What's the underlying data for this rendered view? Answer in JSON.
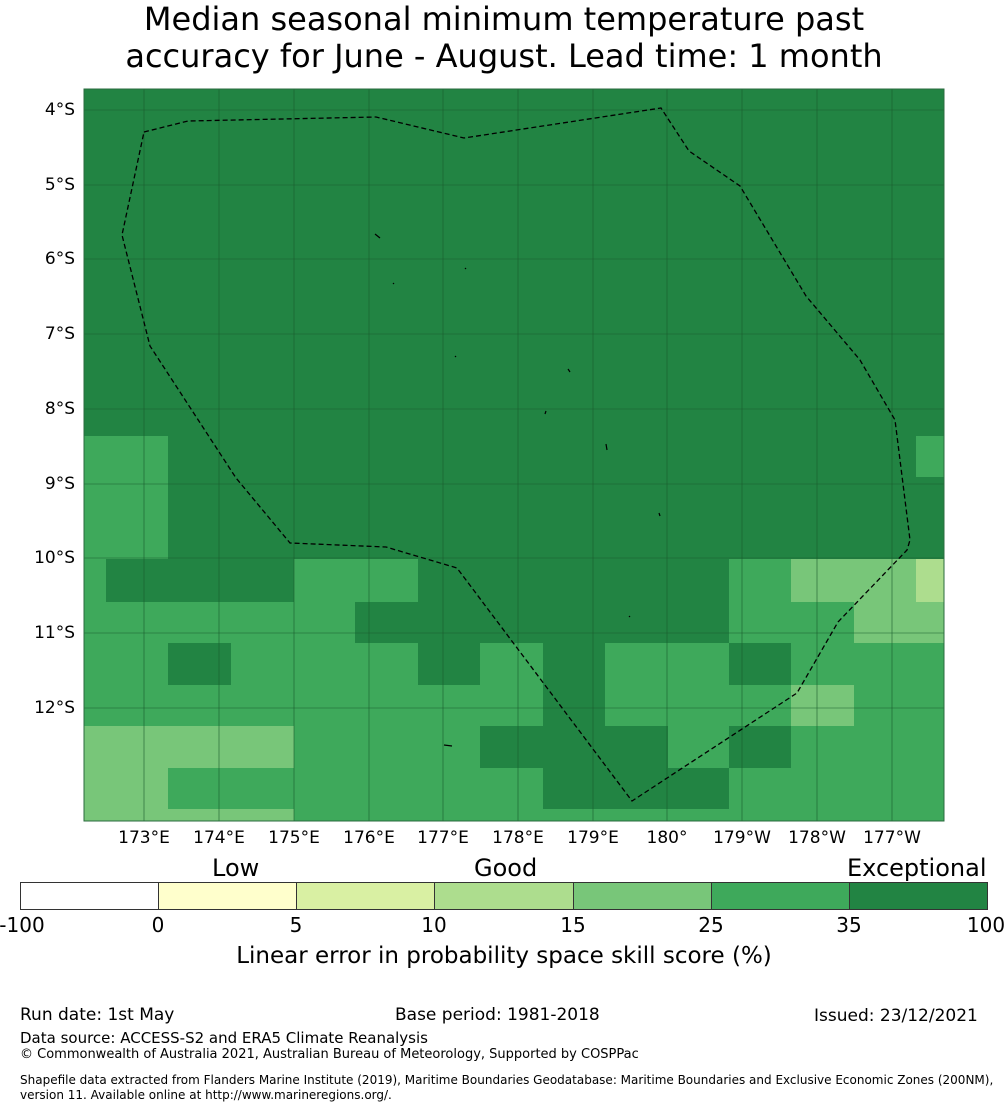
{
  "title": {
    "line1": "Median seasonal minimum temperature past",
    "line2": "accuracy for June - August. Lead time: 1 month"
  },
  "map": {
    "lat_labels": [
      "4°S",
      "5°S",
      "6°S",
      "7°S",
      "8°S",
      "9°S",
      "10°S",
      "11°S",
      "12°S"
    ],
    "lon_labels": [
      "173°E",
      "174°E",
      "175°E",
      "176°E",
      "177°E",
      "178°E",
      "179°E",
      "180°",
      "179°W",
      "178°W",
      "177°W"
    ],
    "colors": {
      "exceptional": "#228443",
      "c25_35": "#3ea95b",
      "c15_25": "#78c679",
      "c10_15": "#addd8e",
      "c5_10": "#d9f0a3",
      "c0_5": "#ffffcc",
      "neg": "#ffffff"
    },
    "boundary": "dashed EEZ outline",
    "islands_icon": "small-island-icon"
  },
  "colorbar": {
    "categories": {
      "low": "Low",
      "good": "Good",
      "exceptional": "Exceptional"
    },
    "ticks": [
      "-100",
      "0",
      "5",
      "10",
      "15",
      "25",
      "35",
      "100"
    ],
    "segment_colors": [
      "#ffffff",
      "#ffffcc",
      "#d9f0a3",
      "#addd8e",
      "#78c679",
      "#3ea95b",
      "#228443"
    ],
    "title": "Linear error in probability space skill score (%)"
  },
  "footer": {
    "run_date": "Run date: 1st May",
    "base_period": "Base period: 1981-2018",
    "issued": "Issued: 23/12/2021",
    "data_source": "Data source: ACCESS-S2 and ERA5 Climate Reanalysis",
    "copyright": "© Commonwealth of Australia 2021, Australian Bureau of Meteorology, Supported by COSPPac",
    "shapefile_line1": "Shapefile data extracted from Flanders Marine Institute (2019), Maritime Boundaries Geodatabase: Maritime Boundaries and Exclusive Economic Zones (200NM),",
    "shapefile_line2": "version 11. Available online at http://www.marineregions.org/."
  }
}
